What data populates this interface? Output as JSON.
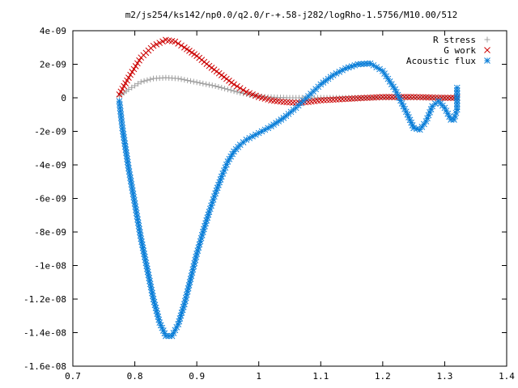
{
  "chart_data": {
    "type": "scatter",
    "title": "m2/js254/ks142/np0.0/q2.0/r-+.58-j282/logRho-1.5756/M10.00/512",
    "xlabel": "",
    "ylabel": "",
    "xlim": [
      0.7,
      1.4
    ],
    "ylim": [
      -1.6e-08,
      4e-09
    ],
    "grid": false,
    "legend_position": "top-right",
    "x_ticks": [
      {
        "value": 0.7,
        "label": "0.7"
      },
      {
        "value": 0.8,
        "label": "0.8"
      },
      {
        "value": 0.9,
        "label": "0.9"
      },
      {
        "value": 1.0,
        "label": "1"
      },
      {
        "value": 1.1,
        "label": "1.1"
      },
      {
        "value": 1.2,
        "label": "1.2"
      },
      {
        "value": 1.3,
        "label": "1.3"
      },
      {
        "value": 1.4,
        "label": "1.4"
      }
    ],
    "y_ticks": [
      {
        "value": 4e-09,
        "label": "4e-09"
      },
      {
        "value": 2e-09,
        "label": "2e-09"
      },
      {
        "value": 0,
        "label": "0"
      },
      {
        "value": -2e-09,
        "label": "-2e-09"
      },
      {
        "value": -4e-09,
        "label": "-4e-09"
      },
      {
        "value": -6e-09,
        "label": "-6e-09"
      },
      {
        "value": -8e-09,
        "label": "-8e-09"
      },
      {
        "value": -1e-08,
        "label": "-1e-08"
      },
      {
        "value": -1.2e-08,
        "label": "-1.2e-08"
      },
      {
        "value": -1.4e-08,
        "label": "-1.4e-08"
      },
      {
        "value": -1.6e-08,
        "label": "-1.6e-08"
      }
    ],
    "series": [
      {
        "name": "R stress",
        "marker": "plus",
        "color": "#a0a0a0",
        "points": [
          [
            0.775,
            1e-10
          ],
          [
            0.79,
            5e-10
          ],
          [
            0.81,
            9.5e-10
          ],
          [
            0.83,
            1.15e-09
          ],
          [
            0.85,
            1.2e-09
          ],
          [
            0.87,
            1.15e-09
          ],
          [
            0.89,
            1e-09
          ],
          [
            0.91,
            8.5e-10
          ],
          [
            0.93,
            7e-10
          ],
          [
            0.95,
            5e-10
          ],
          [
            0.97,
            3e-10
          ],
          [
            0.99,
            1.5e-10
          ],
          [
            1.01,
            5e-11
          ],
          [
            1.05,
            0.0
          ],
          [
            1.1,
            0.0
          ],
          [
            1.15,
            0.0
          ],
          [
            1.2,
            2e-11
          ],
          [
            1.25,
            2e-11
          ],
          [
            1.3,
            0.0
          ],
          [
            1.32,
            0.0
          ]
        ]
      },
      {
        "name": "G work",
        "marker": "cross",
        "color": "#cc0000",
        "points": [
          [
            0.775,
            2e-10
          ],
          [
            0.79,
            1.2e-09
          ],
          [
            0.81,
            2.4e-09
          ],
          [
            0.83,
            3.1e-09
          ],
          [
            0.85,
            3.45e-09
          ],
          [
            0.865,
            3.35e-09
          ],
          [
            0.88,
            3e-09
          ],
          [
            0.9,
            2.5e-09
          ],
          [
            0.92,
            1.9e-09
          ],
          [
            0.94,
            1.35e-09
          ],
          [
            0.96,
            8e-10
          ],
          [
            0.98,
            3.5e-10
          ],
          [
            1.0,
            5e-11
          ],
          [
            1.02,
            -1.5e-10
          ],
          [
            1.04,
            -2.5e-10
          ],
          [
            1.06,
            -3e-10
          ],
          [
            1.08,
            -2.5e-10
          ],
          [
            1.1,
            -1.5e-10
          ],
          [
            1.15,
            -5e-11
          ],
          [
            1.2,
            5e-11
          ],
          [
            1.25,
            5e-11
          ],
          [
            1.3,
            0.0
          ],
          [
            1.32,
            0.0
          ]
        ]
      },
      {
        "name": "Acoustic flux",
        "marker": "star",
        "color": "#0a7ed8",
        "points": [
          [
            0.775,
            -2e-10
          ],
          [
            0.78,
            -1.8e-09
          ],
          [
            0.79,
            -4.2e-09
          ],
          [
            0.8,
            -6.3e-09
          ],
          [
            0.81,
            -8.4e-09
          ],
          [
            0.82,
            -1.02e-08
          ],
          [
            0.83,
            -1.2e-08
          ],
          [
            0.84,
            -1.34e-08
          ],
          [
            0.85,
            -1.42e-08
          ],
          [
            0.86,
            -1.42e-08
          ],
          [
            0.87,
            -1.35e-08
          ],
          [
            0.88,
            -1.23e-08
          ],
          [
            0.89,
            -1.08e-08
          ],
          [
            0.9,
            -9.3e-09
          ],
          [
            0.91,
            -8e-09
          ],
          [
            0.92,
            -6.8e-09
          ],
          [
            0.93,
            -5.7e-09
          ],
          [
            0.94,
            -4.7e-09
          ],
          [
            0.95,
            -3.8e-09
          ],
          [
            0.96,
            -3.2e-09
          ],
          [
            0.97,
            -2.8e-09
          ],
          [
            0.98,
            -2.5e-09
          ],
          [
            1.0,
            -2.1e-09
          ],
          [
            1.02,
            -1.7e-09
          ],
          [
            1.04,
            -1.2e-09
          ],
          [
            1.06,
            -6e-10
          ],
          [
            1.08,
            1e-10
          ],
          [
            1.1,
            8e-10
          ],
          [
            1.12,
            1.35e-09
          ],
          [
            1.14,
            1.75e-09
          ],
          [
            1.16,
            2e-09
          ],
          [
            1.18,
            2.05e-09
          ],
          [
            1.2,
            1.6e-09
          ],
          [
            1.22,
            5e-10
          ],
          [
            1.24,
            -1e-09
          ],
          [
            1.25,
            -1.8e-09
          ],
          [
            1.26,
            -1.9e-09
          ],
          [
            1.27,
            -1.4e-09
          ],
          [
            1.28,
            -5e-10
          ],
          [
            1.29,
            -2e-10
          ],
          [
            1.3,
            -6e-10
          ],
          [
            1.31,
            -1.3e-09
          ],
          [
            1.315,
            -1.3e-09
          ],
          [
            1.32,
            -7e-10
          ],
          [
            1.32,
            6e-10
          ]
        ]
      }
    ]
  }
}
